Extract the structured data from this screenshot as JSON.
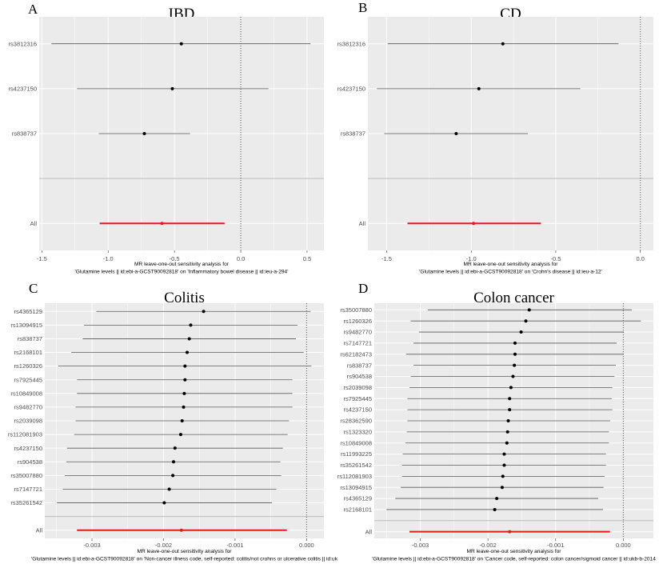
{
  "chart_data": [
    {
      "type": "forest",
      "panel_label": "A",
      "title": "IBD",
      "xlabel": [
        "MR leave-one-out sensitivity analysis for",
        "'Glutamine levels || id:ebi-a-GCST90092818' on 'Inflammatory bowel disease || id:ieu-a-294'"
      ],
      "xlim": [
        -1.52,
        0.627
      ],
      "xticks": [
        -1.5,
        -1.0,
        -0.5,
        0.0,
        0.5
      ],
      "xtick_labels": [
        "-1.5",
        "-1.0",
        "-0.5",
        "0.0",
        "0.5"
      ],
      "reference_line": 0,
      "grid": true,
      "rows": [
        {
          "snp": "rs3812316",
          "b": -0.448,
          "lo": -1.428,
          "hi": 0.526
        },
        {
          "snp": "rs4237150",
          "b": -0.516,
          "lo": -1.235,
          "hi": 0.209
        },
        {
          "snp": "rs838737",
          "b": -0.727,
          "lo": -1.07,
          "hi": -0.382
        }
      ],
      "all": {
        "snp": "All",
        "b": -0.594,
        "lo": -1.064,
        "hi": -0.122
      }
    },
    {
      "type": "forest",
      "panel_label": "B",
      "title": "CD",
      "xlabel": [
        "MR leave-one-out sensitivity analysis for",
        "'Glutamine levels || id:ebi-a-GCST90092818' on 'Crohn's disease || id:ieu-a-12'"
      ],
      "xlim": [
        -1.611,
        0.077
      ],
      "xticks": [
        -1.5,
        -1.0,
        -0.5,
        0.0
      ],
      "xtick_labels": [
        "-1.5",
        "-1.0",
        "-0.5",
        "0.0"
      ],
      "reference_line": 0,
      "grid": true,
      "rows": [
        {
          "snp": "rs3812316",
          "b": -0.813,
          "lo": -1.494,
          "hi": -0.129
        },
        {
          "snp": "rs4237150",
          "b": -0.955,
          "lo": -1.558,
          "hi": -0.355
        },
        {
          "snp": "rs838737",
          "b": -1.089,
          "lo": -1.514,
          "hi": -0.665
        }
      ],
      "all": {
        "snp": "All",
        "b": -0.986,
        "lo": -1.377,
        "hi": -0.588
      }
    },
    {
      "type": "forest",
      "panel_label": "C",
      "title": "Colitis",
      "xlabel": [
        "MR leave-one-out sensitivity analysis for",
        "'Glutamine levels || id:ebi-a-GCST90092818' on 'Non-cancer illness code, self-reported: colitis/not crohns or ulcerative colitis || id:uk"
      ],
      "xlim": [
        -0.00366,
        0.000242
      ],
      "xticks": [
        -0.003,
        -0.002,
        -0.001,
        0.0
      ],
      "xtick_labels": [
        "-0.003",
        "-0.002",
        "-0.001",
        "0.000"
      ],
      "reference_line": 0,
      "grid": true,
      "rows": [
        {
          "snp": "rs4365129",
          "b": -0.00144,
          "lo": -0.00294,
          "hi": 5.6e-05
        },
        {
          "snp": "rs13094915",
          "b": -0.00162,
          "lo": -0.00311,
          "hi": -0.000127
        },
        {
          "snp": "rs838737",
          "b": -0.00164,
          "lo": -0.00313,
          "hi": -0.000149
        },
        {
          "snp": "rs2168101",
          "b": -0.00167,
          "lo": -0.00329,
          "hi": -4.1e-05
        },
        {
          "snp": "rs1260326",
          "b": -0.0017,
          "lo": -0.00347,
          "hi": 6.7e-05
        },
        {
          "snp": "rs7925445",
          "b": -0.0017,
          "lo": -0.00321,
          "hi": -0.000198
        },
        {
          "snp": "rs10849008",
          "b": -0.00171,
          "lo": -0.00321,
          "hi": -0.000198
        },
        {
          "snp": "rs9482770",
          "b": -0.00172,
          "lo": -0.00323,
          "hi": -0.000198
        },
        {
          "snp": "rs2039098",
          "b": -0.00174,
          "lo": -0.00323,
          "hi": -0.000246
        },
        {
          "snp": "rs112081903",
          "b": -0.00176,
          "lo": -0.00325,
          "hi": -0.000265
        },
        {
          "snp": "rs4237150",
          "b": -0.00184,
          "lo": -0.00335,
          "hi": -0.000332
        },
        {
          "snp": "rs904538",
          "b": -0.00186,
          "lo": -0.00336,
          "hi": -0.000365
        },
        {
          "snp": "rs35007880",
          "b": -0.00187,
          "lo": -0.00338,
          "hi": -0.000354
        },
        {
          "snp": "rs7147721",
          "b": -0.00192,
          "lo": -0.00341,
          "hi": -0.000421
        },
        {
          "snp": "rs35261542",
          "b": -0.00199,
          "lo": -0.00349,
          "hi": -0.000484
        }
      ],
      "all": {
        "snp": "All",
        "b": -0.00175,
        "lo": -0.00321,
        "hi": -0.000276
      }
    },
    {
      "type": "forest",
      "panel_label": "D",
      "title": "Colon cancer",
      "xlabel": [
        "MR leave-one-out sensitivity analysis for",
        "'Glutamine levels || id:ebi-a-GCST90092818' on 'Cancer code, self-reported: colon cancer/sigmoid cancer || id:ukb-b-2014"
      ],
      "xlim": [
        -0.00368,
        0.000445
      ],
      "xticks": [
        -0.003,
        -0.002,
        -0.001,
        0.0
      ],
      "xtick_labels": [
        "-0.003",
        "-0.002",
        "-0.001",
        "0.000"
      ],
      "reference_line": 0,
      "grid": true,
      "rows": [
        {
          "snp": "rs35007880",
          "b": -0.00139,
          "lo": -0.00289,
          "hi": 0.000126
        },
        {
          "snp": "rs1260326",
          "b": -0.00144,
          "lo": -0.00314,
          "hi": 0.00026
        },
        {
          "snp": "rs9482770",
          "b": -0.00151,
          "lo": -0.00302,
          "hi": 8e-06
        },
        {
          "snp": "rs7147721",
          "b": -0.0016,
          "lo": -0.0031,
          "hi": -9.8e-05
        },
        {
          "snp": "rs62182473",
          "b": -0.0016,
          "lo": -0.00321,
          "hi": 8e-06
        },
        {
          "snp": "rs838737",
          "b": -0.00161,
          "lo": -0.0031,
          "hi": -0.00011
        },
        {
          "snp": "rs904538",
          "b": -0.00163,
          "lo": -0.00314,
          "hi": -0.00013
        },
        {
          "snp": "rs2039098",
          "b": -0.00166,
          "lo": -0.00316,
          "hi": -0.000161
        },
        {
          "snp": "rs7925445",
          "b": -0.00168,
          "lo": -0.00319,
          "hi": -0.000169
        },
        {
          "snp": "rs4237150",
          "b": -0.00168,
          "lo": -0.00319,
          "hi": -0.000161
        },
        {
          "snp": "rs28362590",
          "b": -0.0017,
          "lo": -0.00319,
          "hi": -0.000193
        },
        {
          "snp": "rs1323320",
          "b": -0.00171,
          "lo": -0.0032,
          "hi": -0.000213
        },
        {
          "snp": "rs10849008",
          "b": -0.00172,
          "lo": -0.00322,
          "hi": -0.000213
        },
        {
          "snp": "rs11993225",
          "b": -0.00176,
          "lo": -0.00326,
          "hi": -0.000256
        },
        {
          "snp": "rs35261542",
          "b": -0.00176,
          "lo": -0.00327,
          "hi": -0.000256
        },
        {
          "snp": "rs112081903",
          "b": -0.00178,
          "lo": -0.00327,
          "hi": -0.000276
        },
        {
          "snp": "rs13094915",
          "b": -0.00179,
          "lo": -0.00329,
          "hi": -0.000291
        },
        {
          "snp": "rs4365129",
          "b": -0.00187,
          "lo": -0.00337,
          "hi": -0.00037
        },
        {
          "snp": "rs2168101",
          "b": -0.0019,
          "lo": -0.0035,
          "hi": -0.000299
        }
      ],
      "all": {
        "snp": "All",
        "b": -0.00168,
        "lo": -0.00316,
        "hi": -0.000197
      }
    }
  ],
  "colors": {
    "panel_bg": "#ebebeb",
    "grid": "#ffffff",
    "snp": "#000000",
    "snp_ci": "#555555",
    "all": "#e41a1c",
    "separator": "#bdbdbd"
  }
}
